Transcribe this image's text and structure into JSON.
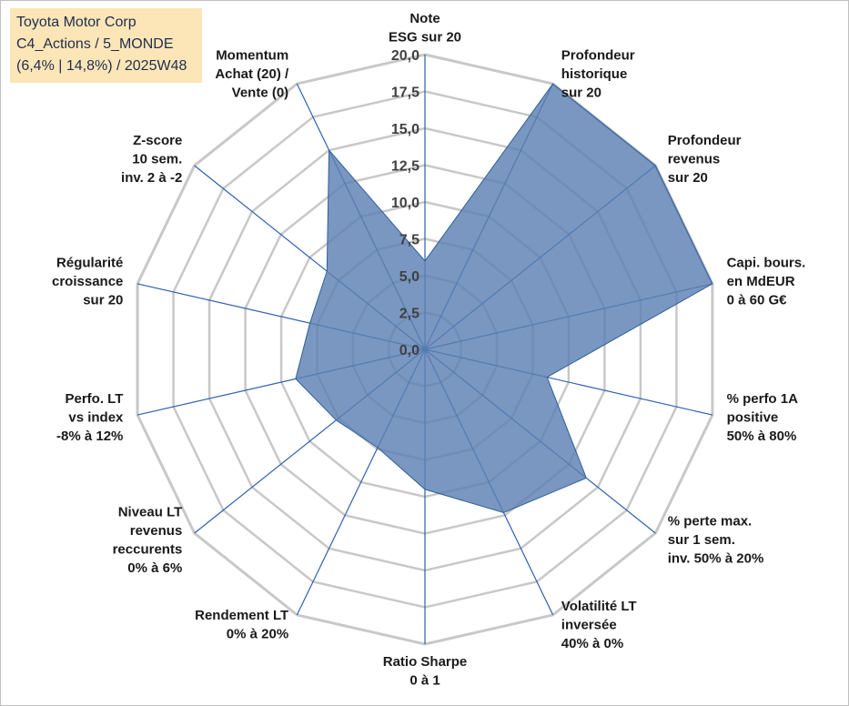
{
  "info": {
    "company": "Toyota Motor Corp",
    "category": "C4_Actions / 5_MONDE",
    "period": "(6,4% | 14,8%) / 2025W48"
  },
  "colors": {
    "fill": "#5b80b2",
    "stroke": "#2e5f9c",
    "grid": "#c8c8c8",
    "spoke": "#3060b0",
    "text": "#1a1a1a",
    "infobox_bg": "#fce6b8"
  },
  "chart_data": {
    "type": "radar",
    "rmin": 0,
    "rmax": 20,
    "ticks": [
      "0,0",
      "2,5",
      "5,0",
      "7,5",
      "10,0",
      "12,5",
      "15,0",
      "17,5",
      "20,0"
    ],
    "axes": [
      {
        "label": [
          "Note",
          "ESG sur 20"
        ],
        "value": 6
      },
      {
        "label": [
          "Profondeur",
          "historique",
          "sur 20"
        ],
        "value": 20
      },
      {
        "label": [
          "Profondeur",
          "revenus",
          "sur 20"
        ],
        "value": 20
      },
      {
        "label": [
          "Capi. bours.",
          "en MdEUR",
          "0 à 60 G€"
        ],
        "value": 20
      },
      {
        "label": [
          "% perfo 1A",
          "positive",
          "50% à 80%"
        ],
        "value": 8.5
      },
      {
        "label": [
          "% perte max.",
          "sur 1 sem.",
          "inv. 50% à 20%"
        ],
        "value": 14
      },
      {
        "label": [
          "Volatilité LT",
          "inversée",
          "40% à 0%"
        ],
        "value": 12.3
      },
      {
        "label": [
          "Ratio Sharpe",
          "0 à 1"
        ],
        "value": 9.5
      },
      {
        "label": [
          "Rendement LT",
          "0% à 20%"
        ],
        "value": 7.4
      },
      {
        "label": [
          "Niveau LT",
          "revenus",
          "reccurents",
          "0% à 6%"
        ],
        "value": 7.7
      },
      {
        "label": [
          "Perfo. LT",
          "vs index",
          "-8% à 12%"
        ],
        "value": 9
      },
      {
        "label": [
          "Régularité",
          "croissance",
          "sur 20"
        ],
        "value": 8
      },
      {
        "label": [
          "Z-score",
          "10 sem.",
          "inv. 2 à -2"
        ],
        "value": 8.5
      },
      {
        "label": [
          "Momentum",
          "Achat (20) /",
          "Vente (0)"
        ],
        "value": 15
      }
    ]
  }
}
